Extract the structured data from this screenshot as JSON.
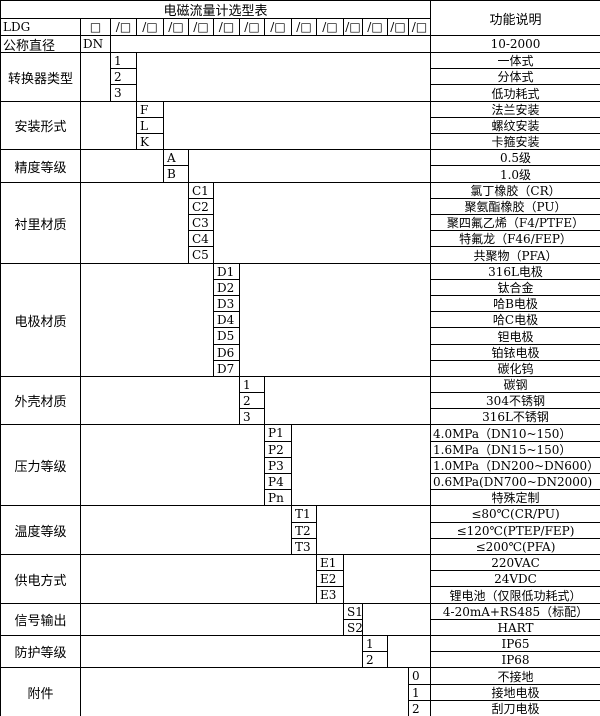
{
  "title": "电磁流量计选型表",
  "function_header": "功能说明",
  "model_prefix": "LDG",
  "model_slots": [
    "□",
    "/□",
    "/□",
    "/□",
    "/□",
    "/□",
    "/□",
    "/□",
    "/□",
    "/□",
    "/□",
    "/□",
    "/□",
    "/□"
  ],
  "nominal": {
    "label": "公称直径",
    "code": "DN",
    "desc": "10-2000"
  },
  "groups": [
    {
      "label": "转换器类型",
      "col": 1,
      "items": [
        {
          "code": "1",
          "desc": "一体式"
        },
        {
          "code": "2",
          "desc": "分体式"
        },
        {
          "code": "3",
          "desc": "低功耗式"
        }
      ]
    },
    {
      "label": "安装形式",
      "col": 2,
      "items": [
        {
          "code": "F",
          "desc": "法兰安装"
        },
        {
          "code": "L",
          "desc": "螺纹安装"
        },
        {
          "code": "K",
          "desc": "卡箍安装"
        }
      ]
    },
    {
      "label": "精度等级",
      "col": 3,
      "items": [
        {
          "code": "A",
          "desc": "0.5级"
        },
        {
          "code": "B",
          "desc": "1.0级"
        }
      ]
    },
    {
      "label": "衬里材质",
      "col": 4,
      "items": [
        {
          "code": "C1",
          "desc": "氯丁橡胶（CR）"
        },
        {
          "code": "C2",
          "desc": "聚氨酯橡胶（PU）"
        },
        {
          "code": "C3",
          "desc": "聚四氟乙烯（F4/PTFE）"
        },
        {
          "code": "C4",
          "desc": "特氟龙（F46/FEP）"
        },
        {
          "code": "C5",
          "desc": "共聚物（PFA）"
        }
      ]
    },
    {
      "label": "电极材质",
      "col": 5,
      "items": [
        {
          "code": "D1",
          "desc": "316L电极"
        },
        {
          "code": "D2",
          "desc": "钛合金"
        },
        {
          "code": "D3",
          "desc": "哈B电极"
        },
        {
          "code": "D4",
          "desc": "哈C电极"
        },
        {
          "code": "D5",
          "desc": "钽电极"
        },
        {
          "code": "D6",
          "desc": "铂铱电极"
        },
        {
          "code": "D7",
          "desc": "碳化钨"
        }
      ]
    },
    {
      "label": "外壳材质",
      "col": 6,
      "items": [
        {
          "code": "1",
          "desc": "碳钢"
        },
        {
          "code": "2",
          "desc": "304不锈钢"
        },
        {
          "code": "3",
          "desc": "316L不锈钢"
        }
      ]
    },
    {
      "label": "压力等级",
      "col": 7,
      "items": [
        {
          "code": "P1",
          "desc": "4.0MPa（DN10~150）",
          "left": true
        },
        {
          "code": "P2",
          "desc": "1.6MPa（DN15~150）",
          "left": true
        },
        {
          "code": "P3",
          "desc": "1.0MPa（DN200~DN600）",
          "left": true
        },
        {
          "code": "P4",
          "desc": "0.6MPa(DN700~DN2000)",
          "left": true
        },
        {
          "code": "Pn",
          "desc": "特殊定制"
        }
      ]
    },
    {
      "label": "温度等级",
      "col": 8,
      "items": [
        {
          "code": "T1",
          "desc": "≤80℃(CR/PU)"
        },
        {
          "code": "T2",
          "desc": "≤120℃(PTEP/FEP)"
        },
        {
          "code": "T3",
          "desc": "≤200℃(PFA)"
        }
      ]
    },
    {
      "label": "供电方式",
      "col": 9,
      "items": [
        {
          "code": "E1",
          "desc": "220VAC"
        },
        {
          "code": "E2",
          "desc": "24VDC"
        },
        {
          "code": "E3",
          "desc": "锂电池（仅限低功耗式）"
        }
      ]
    },
    {
      "label": "信号输出",
      "col": 10,
      "items": [
        {
          "code": "S1",
          "desc": "4-20mA+RS485（标配）"
        },
        {
          "code": "S2",
          "desc": "HART"
        }
      ]
    },
    {
      "label": "防护等级",
      "col": 11,
      "items": [
        {
          "code": "1",
          "desc": "IP65"
        },
        {
          "code": "2",
          "desc": "IP68"
        }
      ]
    },
    {
      "label": "附件",
      "col": 13,
      "items": [
        {
          "code": "0",
          "desc": "不接地"
        },
        {
          "code": "1",
          "desc": "接地电极"
        },
        {
          "code": "2",
          "desc": "刮刀电极"
        }
      ]
    }
  ]
}
